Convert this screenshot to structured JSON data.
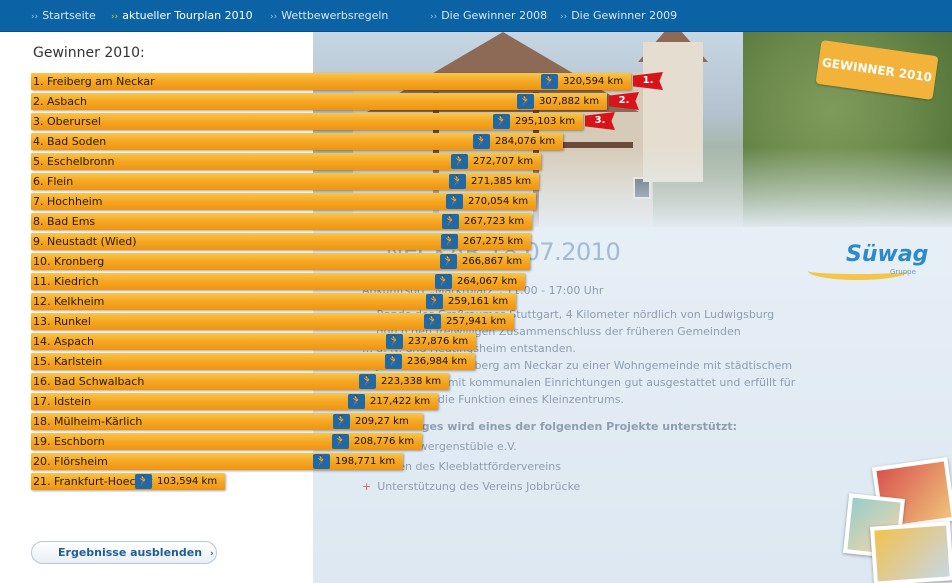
{
  "nav": {
    "items": [
      {
        "label": "Startseite",
        "active": false
      },
      {
        "label": "aktueller Tourplan 2010",
        "active": true
      },
      {
        "label": "Wettbewerbsregeln",
        "active": false
      },
      {
        "label": "Die Gewinner 2008",
        "active": false
      },
      {
        "label": "Die Gewinner 2009",
        "active": false
      }
    ]
  },
  "badge": "GEWINNER 2010",
  "event": {
    "title": "…NECKAR 18.07.2010",
    "info": "Ankunftsort „Marktplatz“, 11:00 - 17:00 Uhr",
    "description": [
      "… Rande des Großraumes Stuttgart, 4 Kilometer nördlich von Ludwigsburg",
      "… durch den freiwilligen Zusammenschluss der früheren Gemeinden",
      "… a. N. und Heutingsheim entstanden.",
      "… Jahre hat sich Freiberg am Neckar zu einer Wohngemeinde mit städtischem",
      "… Die Stadt ist mit kommunalen Einrichtungen gut ausgestattet und erfüllt für",
      "… Einwohner die Funktion eines Kleinzentrums."
    ],
    "support_heading": "…ines Sieges wird eines der folgenden Projekte unterstützt:",
    "projects": [
      "…des Zwergenstüble e.V.",
      "…sten des Kleeblattfördervereins",
      "Unterstützung des Vereins Jobbrücke"
    ]
  },
  "logo": {
    "name": "Süwag",
    "sub": "Gruppe"
  },
  "winners": {
    "title": "Gewinner 2010:",
    "entries": [
      {
        "label": "1. Freiberg am Neckar",
        "km": "320,594 km",
        "value": 320594,
        "rank_flag": "1."
      },
      {
        "label": "2. Asbach",
        "km": "307,882 km",
        "value": 307882,
        "rank_flag": "2."
      },
      {
        "label": "3. Oberursel",
        "km": "295,103 km",
        "value": 295103,
        "rank_flag": "3."
      },
      {
        "label": "4. Bad Soden",
        "km": "284,076 km",
        "value": 284076,
        "rank_flag": ""
      },
      {
        "label": "5. Eschelbronn",
        "km": "272,707 km",
        "value": 272707,
        "rank_flag": ""
      },
      {
        "label": "6. Flein",
        "km": "271,385 km",
        "value": 271385,
        "rank_flag": ""
      },
      {
        "label": "7. Hochheim",
        "km": "270,054 km",
        "value": 270054,
        "rank_flag": ""
      },
      {
        "label": "8. Bad Ems",
        "km": "267,723 km",
        "value": 267723,
        "rank_flag": ""
      },
      {
        "label": "9. Neustadt (Wied)",
        "km": "267,275 km",
        "value": 267275,
        "rank_flag": ""
      },
      {
        "label": "10. Kronberg",
        "km": "266,867 km",
        "value": 266867,
        "rank_flag": ""
      },
      {
        "label": "11. Kiedrich",
        "km": "264,067 km",
        "value": 264067,
        "rank_flag": ""
      },
      {
        "label": "12. Kelkheim",
        "km": "259,161 km",
        "value": 259161,
        "rank_flag": ""
      },
      {
        "label": "13. Runkel",
        "km": "257,941 km",
        "value": 257941,
        "rank_flag": ""
      },
      {
        "label": "14. Aspach",
        "km": "237,876 km",
        "value": 237876,
        "rank_flag": ""
      },
      {
        "label": "15. Karlstein",
        "km": "236,984 km",
        "value": 236984,
        "rank_flag": ""
      },
      {
        "label": "16. Bad Schwalbach",
        "km": "223,338 km",
        "value": 223338,
        "rank_flag": ""
      },
      {
        "label": "17. Idstein",
        "km": "217,422 km",
        "value": 217422,
        "rank_flag": ""
      },
      {
        "label": "18. Mülheim-Kärlich",
        "km": "209,27 km",
        "value": 209270,
        "rank_flag": ""
      },
      {
        "label": "19. Eschborn",
        "km": "208,776 km",
        "value": 208776,
        "rank_flag": ""
      },
      {
        "label": "20. Flörsheim",
        "km": "198,771 km",
        "value": 198771,
        "rank_flag": ""
      },
      {
        "label": "21. Frankfurt-Hoechst",
        "km": "103,594 km",
        "value": 103594,
        "rank_flag": ""
      }
    ]
  },
  "button": {
    "label": "Ergebnisse ausblenden"
  },
  "icons": {
    "runner": "runner-icon",
    "nav_arrow": "chevron-right-icon"
  },
  "colors": {
    "nav": "#0b63a6",
    "bar": "#f5a623",
    "runner_bg": "#1e6aa8",
    "rank_flag": "#d8141b"
  }
}
